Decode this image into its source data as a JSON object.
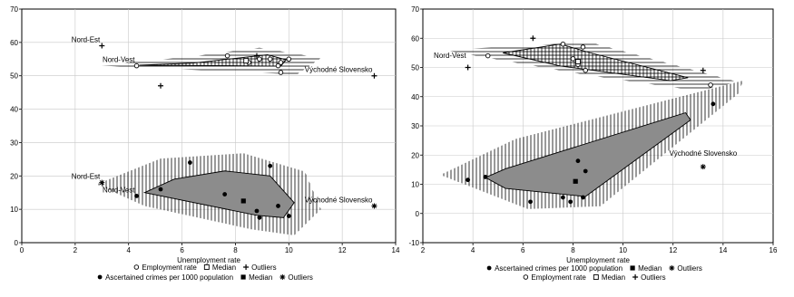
{
  "chart_data": [
    {
      "type": "scatter",
      "subtype": "bagplot",
      "xlabel": "Unemployment rate",
      "ylabel": "",
      "xlim": [
        0,
        14
      ],
      "ylim": [
        0,
        70
      ],
      "xticks": [
        0,
        2,
        4,
        6,
        8,
        10,
        12,
        14
      ],
      "yticks": [
        0,
        10,
        20,
        30,
        40,
        50,
        60,
        70
      ],
      "grid": true,
      "legend_position": "bottom",
      "legend": [
        {
          "symbol": "open-circle",
          "label": "Employment rate"
        },
        {
          "symbol": "open-square",
          "label": "Median"
        },
        {
          "symbol": "plus",
          "label": "Outliers"
        },
        {
          "symbol": "filled-circle",
          "label": "Ascertained crimes per 1000 population"
        },
        {
          "symbol": "filled-square",
          "label": "Median"
        },
        {
          "symbol": "star",
          "label": "Outliers"
        }
      ],
      "series": [
        {
          "name": "Employment rate",
          "role": "employment",
          "marker": "open-circle",
          "points": [
            [
              4.3,
              53
            ],
            [
              7.7,
              56
            ],
            [
              8.5,
              54
            ],
            [
              8.9,
              55
            ],
            [
              9.3,
              55
            ],
            [
              9.6,
              53
            ],
            [
              9.7,
              54
            ],
            [
              10.0,
              55
            ],
            [
              9.7,
              51
            ]
          ],
          "median": [
            8.4,
            54.5
          ],
          "outliers": [
            [
              3.0,
              59
            ],
            [
              5.2,
              47
            ],
            [
              8.8,
              56
            ],
            [
              13.2,
              50
            ]
          ],
          "bag": [
            [
              4.4,
              53.2
            ],
            [
              6.4,
              53.8
            ],
            [
              9.2,
              56.3
            ],
            [
              9.9,
              54.8
            ],
            [
              9.7,
              52.9
            ],
            [
              6.4,
              53.1
            ]
          ],
          "fence": [
            [
              2.8,
              53.1
            ],
            [
              6.3,
              55.7
            ],
            [
              8.9,
              58.4
            ],
            [
              11.2,
              55.3
            ],
            [
              10.3,
              50.4
            ],
            [
              7.0,
              51.6
            ]
          ]
        },
        {
          "name": "Ascertained crimes per 1000 population",
          "role": "crimes",
          "marker": "filled-circle",
          "points": [
            [
              4.3,
              14
            ],
            [
              5.2,
              16
            ],
            [
              6.3,
              24
            ],
            [
              7.6,
              14.5
            ],
            [
              8.8,
              9.5
            ],
            [
              8.9,
              7.5
            ],
            [
              9.3,
              23
            ],
            [
              9.6,
              11
            ],
            [
              10.0,
              8
            ]
          ],
          "median": [
            8.3,
            12.5
          ],
          "outliers": [
            [
              3.0,
              18
            ],
            [
              13.2,
              11
            ]
          ],
          "bag": [
            [
              4.6,
              15
            ],
            [
              5.7,
              19
            ],
            [
              7.6,
              21.5
            ],
            [
              9.3,
              20
            ],
            [
              10.2,
              12
            ],
            [
              9.8,
              7.5
            ],
            [
              8.8,
              8.2
            ]
          ],
          "fence": [
            [
              2.8,
              17.5
            ],
            [
              5.2,
              25.2
            ],
            [
              8.3,
              26.8
            ],
            [
              10.6,
              21.3
            ],
            [
              11.2,
              10.0
            ],
            [
              10.2,
              2.2
            ],
            [
              8.6,
              4.0
            ],
            [
              4.6,
              11.0
            ]
          ]
        }
      ],
      "annotations": [
        {
          "text": "Nord-Est",
          "x": 3.0,
          "y": 59,
          "anchor": "end"
        },
        {
          "text": "Nord-Vest",
          "x": 4.3,
          "y": 53,
          "anchor": "end"
        },
        {
          "text": "Východné Slovensko",
          "x": 13.2,
          "y": 50,
          "anchor": "end"
        },
        {
          "text": "Nord-Est",
          "x": 3.0,
          "y": 18,
          "anchor": "end"
        },
        {
          "text": "Nord-Vest",
          "x": 4.3,
          "y": 14,
          "anchor": "end"
        },
        {
          "text": "Východné Slovensko",
          "x": 13.2,
          "y": 11,
          "anchor": "end"
        }
      ]
    },
    {
      "type": "scatter",
      "subtype": "bagplot",
      "xlabel": "Unemployment rate",
      "ylabel": "",
      "xlim": [
        2,
        16
      ],
      "ylim": [
        -10,
        70
      ],
      "xticks": [
        2,
        4,
        6,
        8,
        10,
        12,
        14,
        16
      ],
      "yticks": [
        -10,
        0,
        10,
        20,
        30,
        40,
        50,
        60,
        70
      ],
      "grid": true,
      "legend_position": "bottom",
      "legend": [
        {
          "symbol": "filled-circle",
          "label": "Ascertained crimes per 1000 population"
        },
        {
          "symbol": "filled-square",
          "label": "Median"
        },
        {
          "symbol": "star",
          "label": "Outliers"
        },
        {
          "symbol": "open-circle",
          "label": "Employment rate"
        },
        {
          "symbol": "open-square",
          "label": "Median"
        },
        {
          "symbol": "plus",
          "label": "Outliers"
        }
      ],
      "series": [
        {
          "name": "Employment rate",
          "role": "employment",
          "marker": "open-circle",
          "points": [
            [
              4.6,
              54
            ],
            [
              7.6,
              58
            ],
            [
              8.0,
              53
            ],
            [
              8.4,
              57
            ],
            [
              8.5,
              49
            ],
            [
              8.2,
              51
            ],
            [
              13.5,
              44
            ]
          ],
          "median": [
            8.2,
            52
          ],
          "outliers": [
            [
              3.8,
              50
            ],
            [
              6.4,
              60
            ],
            [
              13.2,
              49
            ]
          ],
          "bag": [
            [
              5.2,
              55
            ],
            [
              7.5,
              58
            ],
            [
              8.7,
              55
            ],
            [
              12.6,
              46.5
            ],
            [
              11.9,
              45.5
            ],
            [
              7.5,
              50.5
            ]
          ],
          "fence": [
            [
              2.8,
              56
            ],
            [
              6.3,
              57.5
            ],
            [
              8.6,
              58.8
            ],
            [
              14.6,
              45
            ],
            [
              13.0,
              42
            ],
            [
              8.5,
              47.5
            ]
          ]
        },
        {
          "name": "Ascertained crimes per 1000 population",
          "role": "crimes",
          "marker": "filled-circle",
          "points": [
            [
              3.8,
              11.5
            ],
            [
              4.5,
              12.5
            ],
            [
              6.3,
              4
            ],
            [
              7.6,
              5.5
            ],
            [
              7.9,
              4
            ],
            [
              8.2,
              18
            ],
            [
              8.4,
              5.5
            ],
            [
              8.5,
              14.5
            ],
            [
              13.6,
              37.5
            ]
          ],
          "median": [
            8.1,
            11
          ],
          "outliers": [
            [
              13.2,
              16
            ]
          ],
          "bag": [
            [
              4.5,
              12.3
            ],
            [
              5.3,
              15.3
            ],
            [
              12.5,
              34.5
            ],
            [
              12.7,
              32
            ],
            [
              8.5,
              5.8
            ],
            [
              5.3,
              8.6
            ]
          ],
          "fence": [
            [
              2.7,
              13.2
            ],
            [
              5.7,
              25.5
            ],
            [
              14.8,
              45.5
            ],
            [
              14.6,
              41
            ],
            [
              9.1,
              2.5
            ],
            [
              6.2,
              1.5
            ]
          ]
        }
      ],
      "annotations": [
        {
          "text": "Nord-Vest",
          "x": 3.8,
          "y": 52,
          "anchor": "end"
        },
        {
          "text": "Východné Slovensko",
          "x": 13.2,
          "y": 18.5,
          "anchor": "middle"
        }
      ]
    }
  ]
}
